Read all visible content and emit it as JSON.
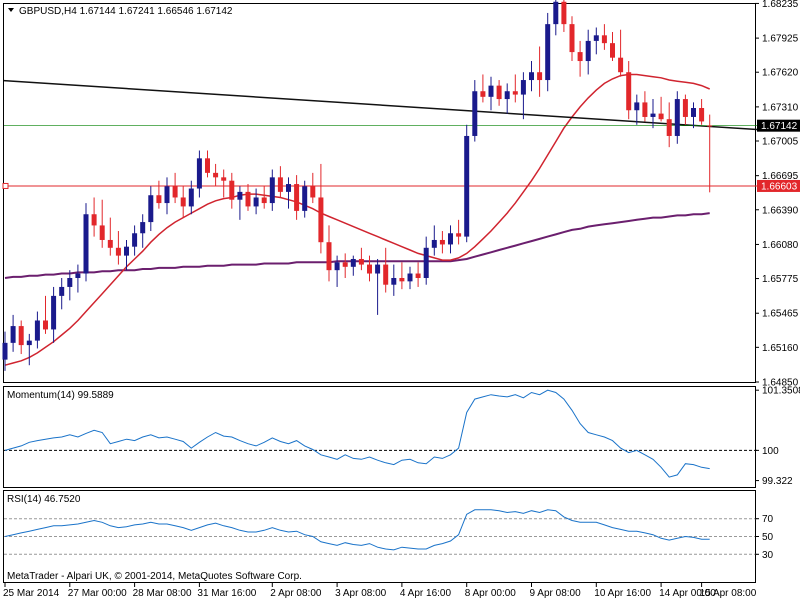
{
  "header": {
    "symbol_title": "GBPUSD,H4  1.67144 1.67241 1.66546 1.67142"
  },
  "momentum_title": "Momentum(14) 99.5889",
  "rsi_title": "RSI(14) 46.7520",
  "footer": "MetaTrader - Alpari UK, © 2001-2014, MetaQuotes Software Corp.",
  "colors": {
    "bull": "#1a1a8c",
    "bear": "#e2272b",
    "ma_fast": "#d0242f",
    "ma_slow": "#6b1f6e",
    "trendline": "#111111",
    "indicator": "#1a73c9",
    "hline": "#e2272b",
    "gridline": "#008000"
  },
  "chart_data": [
    {
      "type": "candlestick",
      "title": "GBPUSD,H4  1.67144 1.67241 1.66546 1.67142",
      "ylim": [
        1.6485,
        1.6823
      ],
      "y_ticks": [
        "1.68235",
        "1.67925",
        "1.67620",
        "1.67310",
        "1.67005",
        "1.66695",
        "1.66390",
        "1.66080",
        "1.65775",
        "1.65465",
        "1.65160",
        "1.64850"
      ],
      "x_ticks": [
        "25 Mar 2014",
        "27 Mar 00:00",
        "28 Mar 08:00",
        "31 Mar 16:00",
        "2 Apr 08:00",
        "3 Apr 08:00",
        "4 Apr 16:00",
        "8 Apr 00:00",
        "9 Apr 08:00",
        "10 Apr 16:00",
        "14 Apr 00:00",
        "15 Apr 08:00"
      ],
      "current_price_label": "1.67142",
      "level_label": "1.66603",
      "level_value": 1.66603,
      "candles": [
        [
          1.6505,
          1.653,
          1.6495,
          1.652
        ],
        [
          1.652,
          1.6545,
          1.6512,
          1.6535
        ],
        [
          1.6535,
          1.654,
          1.651,
          1.6518
        ],
        [
          1.6518,
          1.6528,
          1.65,
          1.6522
        ],
        [
          1.6522,
          1.6548,
          1.6515,
          1.654
        ],
        [
          1.654,
          1.6562,
          1.6528,
          1.6532
        ],
        [
          1.6532,
          1.657,
          1.652,
          1.6562
        ],
        [
          1.6562,
          1.6578,
          1.655,
          1.657
        ],
        [
          1.657,
          1.6585,
          1.6558,
          1.6578
        ],
        [
          1.6578,
          1.659,
          1.6565,
          1.6582
        ],
        [
          1.6582,
          1.6645,
          1.6575,
          1.6635
        ],
        [
          1.6635,
          1.665,
          1.6615,
          1.6625
        ],
        [
          1.6625,
          1.6648,
          1.6605,
          1.6612
        ],
        [
          1.6612,
          1.6632,
          1.6598,
          1.6605
        ],
        [
          1.6605,
          1.662,
          1.659,
          1.6598
        ],
        [
          1.6598,
          1.6612,
          1.6585,
          1.6606
        ],
        [
          1.6606,
          1.6625,
          1.6598,
          1.6618
        ],
        [
          1.6618,
          1.6635,
          1.6605,
          1.6628
        ],
        [
          1.6628,
          1.666,
          1.662,
          1.6652
        ],
        [
          1.6652,
          1.6665,
          1.664,
          1.6645
        ],
        [
          1.6645,
          1.6668,
          1.6635,
          1.666
        ],
        [
          1.666,
          1.6672,
          1.6645,
          1.665
        ],
        [
          1.665,
          1.666,
          1.6632,
          1.6642
        ],
        [
          1.6642,
          1.6665,
          1.6635,
          1.6658
        ],
        [
          1.6658,
          1.6692,
          1.665,
          1.6685
        ],
        [
          1.6685,
          1.6692,
          1.6668,
          1.6672
        ],
        [
          1.6672,
          1.668,
          1.666,
          1.6668
        ],
        [
          1.6668,
          1.6675,
          1.665,
          1.6665
        ],
        [
          1.6665,
          1.6672,
          1.664,
          1.6648
        ],
        [
          1.6648,
          1.666,
          1.663,
          1.6655
        ],
        [
          1.6655,
          1.6662,
          1.6638,
          1.6642
        ],
        [
          1.6642,
          1.6658,
          1.6635,
          1.665
        ],
        [
          1.665,
          1.666,
          1.664,
          1.6645
        ],
        [
          1.6645,
          1.6675,
          1.6638,
          1.6668
        ],
        [
          1.6668,
          1.6678,
          1.665,
          1.6655
        ],
        [
          1.6655,
          1.6668,
          1.664,
          1.6662
        ],
        [
          1.6662,
          1.667,
          1.663,
          1.6638
        ],
        [
          1.6638,
          1.6665,
          1.6632,
          1.666
        ],
        [
          1.666,
          1.6672,
          1.6645,
          1.665
        ],
        [
          1.665,
          1.668,
          1.66,
          1.661
        ],
        [
          1.661,
          1.6625,
          1.6575,
          1.6585
        ],
        [
          1.6585,
          1.6598,
          1.657,
          1.6592
        ],
        [
          1.6592,
          1.66,
          1.6578,
          1.6588
        ],
        [
          1.6588,
          1.6598,
          1.658,
          1.6595
        ],
        [
          1.6595,
          1.6605,
          1.6585,
          1.659
        ],
        [
          1.659,
          1.6598,
          1.6575,
          1.6582
        ],
        [
          1.6582,
          1.6595,
          1.6545,
          1.659
        ],
        [
          1.659,
          1.6605,
          1.6565,
          1.6572
        ],
        [
          1.6572,
          1.659,
          1.6562,
          1.6578
        ],
        [
          1.6578,
          1.6592,
          1.6568,
          1.6575
        ],
        [
          1.6575,
          1.6588,
          1.6568,
          1.6582
        ],
        [
          1.6582,
          1.6592,
          1.657,
          1.6578
        ],
        [
          1.6578,
          1.6615,
          1.6572,
          1.6605
        ],
        [
          1.6605,
          1.6625,
          1.6598,
          1.6612
        ],
        [
          1.6612,
          1.662,
          1.66,
          1.6608
        ],
        [
          1.6608,
          1.6625,
          1.66,
          1.6618
        ],
        [
          1.6618,
          1.663,
          1.6608,
          1.6615
        ],
        [
          1.6615,
          1.6715,
          1.661,
          1.6705
        ],
        [
          1.6705,
          1.6755,
          1.67,
          1.6745
        ],
        [
          1.6745,
          1.676,
          1.6735,
          1.674
        ],
        [
          1.674,
          1.6758,
          1.6728,
          1.675
        ],
        [
          1.675,
          1.6755,
          1.6732,
          1.6738
        ],
        [
          1.6738,
          1.6752,
          1.6725,
          1.6745
        ],
        [
          1.6745,
          1.676,
          1.6735,
          1.6742
        ],
        [
          1.6742,
          1.6762,
          1.672,
          1.6755
        ],
        [
          1.6755,
          1.6772,
          1.6745,
          1.6762
        ],
        [
          1.6762,
          1.6785,
          1.674,
          1.6755
        ],
        [
          1.6755,
          1.6815,
          1.6745,
          1.6805
        ],
        [
          1.6805,
          1.6828,
          1.6795,
          1.6825
        ],
        [
          1.6825,
          1.683,
          1.6798,
          1.6805
        ],
        [
          1.6805,
          1.6812,
          1.6772,
          1.678
        ],
        [
          1.678,
          1.679,
          1.6758,
          1.6772
        ],
        [
          1.6772,
          1.68,
          1.676,
          1.679
        ],
        [
          1.679,
          1.6802,
          1.6778,
          1.6795
        ],
        [
          1.6795,
          1.6805,
          1.6782,
          1.6788
        ],
        [
          1.6788,
          1.6798,
          1.6772,
          1.6775
        ],
        [
          1.6775,
          1.68,
          1.6758,
          1.6762
        ],
        [
          1.6762,
          1.6772,
          1.672,
          1.6728
        ],
        [
          1.6728,
          1.6742,
          1.6715,
          1.6735
        ],
        [
          1.6735,
          1.6745,
          1.6718,
          1.6722
        ],
        [
          1.6722,
          1.6738,
          1.6712,
          1.6725
        ],
        [
          1.6725,
          1.674,
          1.6718,
          1.672
        ],
        [
          1.672,
          1.6735,
          1.6695,
          1.6705
        ],
        [
          1.6705,
          1.6745,
          1.6698,
          1.6738
        ],
        [
          1.6738,
          1.6742,
          1.6715,
          1.6722
        ],
        [
          1.6722,
          1.6735,
          1.6712,
          1.673
        ],
        [
          1.673,
          1.6738,
          1.6715,
          1.6718
        ],
        [
          1.67144,
          1.67241,
          1.66546,
          1.67142
        ]
      ],
      "ma_fast": [
        1.65,
        1.6502,
        1.6504,
        1.6507,
        1.6511,
        1.6516,
        1.6521,
        1.6527,
        1.6533,
        1.654,
        1.6548,
        1.6556,
        1.6564,
        1.6572,
        1.658,
        1.6588,
        1.6595,
        1.6602,
        1.661,
        1.6617,
        1.6623,
        1.6628,
        1.6632,
        1.6636,
        1.664,
        1.6644,
        1.6647,
        1.6649,
        1.665,
        1.6652,
        1.6653,
        1.6653,
        1.6652,
        1.6651,
        1.665,
        1.6648,
        1.6646,
        1.6643,
        1.664,
        1.6636,
        1.6633,
        1.663,
        1.6627,
        1.6624,
        1.6621,
        1.6618,
        1.6615,
        1.6612,
        1.6609,
        1.6606,
        1.6603,
        1.66,
        1.6598,
        1.6596,
        1.6594,
        1.6594,
        1.6596,
        1.66,
        1.6606,
        1.6613,
        1.662,
        1.6628,
        1.6636,
        1.6645,
        1.6655,
        1.6665,
        1.6676,
        1.6688,
        1.67,
        1.6712,
        1.6722,
        1.6731,
        1.6739,
        1.6746,
        1.6752,
        1.6756,
        1.6759,
        1.676,
        1.676,
        1.6759,
        1.6758,
        1.6757,
        1.6755,
        1.6754,
        1.6753,
        1.6752,
        1.675,
        1.6747
      ],
      "ma_slow": [
        1.6578,
        1.6579,
        1.6579,
        1.658,
        1.658,
        1.6581,
        1.6581,
        1.6582,
        1.6582,
        1.6583,
        1.6583,
        1.6583,
        1.6584,
        1.6584,
        1.6585,
        1.6585,
        1.6585,
        1.6586,
        1.6586,
        1.6587,
        1.6587,
        1.6587,
        1.6588,
        1.6588,
        1.6588,
        1.6589,
        1.6589,
        1.6589,
        1.659,
        1.659,
        1.659,
        1.659,
        1.6591,
        1.6591,
        1.6591,
        1.6591,
        1.6592,
        1.6592,
        1.6592,
        1.6592,
        1.6592,
        1.6593,
        1.6593,
        1.6593,
        1.6593,
        1.6593,
        1.6593,
        1.6593,
        1.6593,
        1.6593,
        1.6593,
        1.6593,
        1.6593,
        1.6593,
        1.6593,
        1.6593,
        1.6594,
        1.6595,
        1.6597,
        1.6599,
        1.6601,
        1.6603,
        1.6605,
        1.6607,
        1.6609,
        1.6611,
        1.6613,
        1.6615,
        1.6617,
        1.6619,
        1.6621,
        1.6622,
        1.6624,
        1.6625,
        1.6626,
        1.6627,
        1.6628,
        1.6629,
        1.663,
        1.6631,
        1.6632,
        1.6632,
        1.6633,
        1.6634,
        1.6634,
        1.6635,
        1.6635,
        1.6636
      ],
      "trendline": [
        [
          0,
          1.67545
        ],
        [
          87,
          1.67135
        ]
      ]
    },
    {
      "type": "line",
      "title": "Momentum(14) 99.5889",
      "ylim": [
        99.2,
        101.4
      ],
      "y_ticks": [
        "101.3508",
        "100",
        "99.322"
      ],
      "reference_line": 100,
      "values": [
        100.0,
        100.05,
        100.1,
        100.18,
        100.22,
        100.25,
        100.28,
        100.3,
        100.35,
        100.3,
        100.38,
        100.45,
        100.4,
        100.15,
        100.2,
        100.25,
        100.22,
        100.3,
        100.35,
        100.28,
        100.3,
        100.25,
        100.2,
        100.05,
        100.18,
        100.3,
        100.4,
        100.32,
        100.3,
        100.22,
        100.15,
        100.1,
        100.18,
        100.28,
        100.2,
        100.15,
        100.22,
        100.1,
        100.02,
        99.9,
        99.85,
        99.8,
        99.9,
        99.82,
        99.8,
        99.85,
        99.78,
        99.72,
        99.68,
        99.78,
        99.8,
        99.72,
        99.7,
        99.85,
        99.82,
        99.9,
        100.05,
        100.85,
        101.15,
        101.2,
        101.25,
        101.22,
        101.2,
        101.25,
        101.18,
        101.3,
        101.25,
        101.35,
        101.3,
        101.15,
        100.9,
        100.6,
        100.4,
        100.35,
        100.3,
        100.22,
        100.05,
        99.95,
        100.0,
        99.9,
        99.8,
        99.62,
        99.4,
        99.45,
        99.7,
        99.68,
        99.62,
        99.59
      ]
    },
    {
      "type": "line",
      "title": "RSI(14) 46.7520",
      "ylim": [
        0,
        100
      ],
      "y_ticks": [
        "70",
        "50",
        "30"
      ],
      "reference_lines": [
        70,
        50,
        30
      ],
      "values": [
        50,
        52,
        54,
        56,
        58,
        60,
        62,
        62,
        63,
        64,
        66,
        68,
        66,
        62,
        60,
        61,
        63,
        64,
        66,
        64,
        64,
        62,
        60,
        57,
        60,
        63,
        65,
        62,
        60,
        57,
        55,
        55,
        57,
        60,
        57,
        55,
        56,
        52,
        50,
        44,
        42,
        40,
        43,
        41,
        40,
        42,
        38,
        36,
        35,
        38,
        37,
        36,
        36,
        40,
        42,
        45,
        52,
        75,
        80,
        80,
        80,
        79,
        77,
        78,
        76,
        79,
        77,
        80,
        79,
        72,
        68,
        66,
        66,
        66,
        63,
        60,
        58,
        56,
        56,
        54,
        52,
        48,
        46,
        48,
        50,
        49,
        47,
        47
      ]
    }
  ]
}
